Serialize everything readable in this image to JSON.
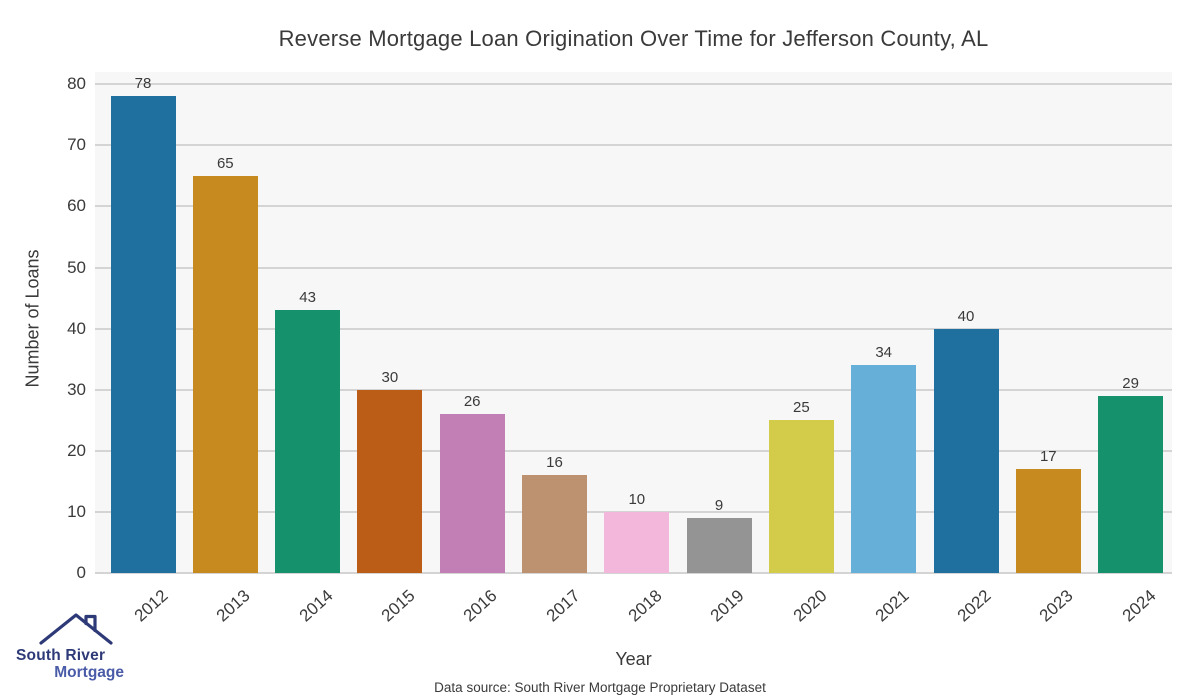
{
  "chart_data": {
    "type": "bar",
    "title": "Reverse Mortgage Loan Origination Over Time for Jefferson County, AL",
    "xlabel": "Year",
    "ylabel": "Number of Loans",
    "categories": [
      "2012",
      "2013",
      "2014",
      "2015",
      "2016",
      "2017",
      "2018",
      "2019",
      "2020",
      "2021",
      "2022",
      "2023",
      "2024"
    ],
    "values": [
      78,
      65,
      43,
      30,
      26,
      16,
      10,
      9,
      25,
      34,
      40,
      17,
      29
    ],
    "bar_colors": [
      "#20709f",
      "#c68a1f",
      "#15916c",
      "#bc5d17",
      "#c17fb5",
      "#bd9271",
      "#f3b7dc",
      "#949494",
      "#d3cb4a",
      "#66afd8",
      "#20709f",
      "#c68a1f",
      "#15916c"
    ],
    "ylim": [
      0,
      82
    ],
    "yticks": [
      0,
      10,
      20,
      30,
      40,
      50,
      60,
      70,
      80
    ],
    "grid": true,
    "legend_position": "none",
    "plot_background": "#f7f7f7",
    "gridline_color": "#d4d4d4",
    "text_color": "#3a3a3a"
  },
  "footer": {
    "source": "Data source: South River Mortgage Proprietary Dataset"
  },
  "logo": {
    "line1": "South River",
    "line2": "Mortgage",
    "line1_color": "#2e3a78",
    "line2_color": "#4a5ca8",
    "roof_color": "#2e3a78"
  }
}
